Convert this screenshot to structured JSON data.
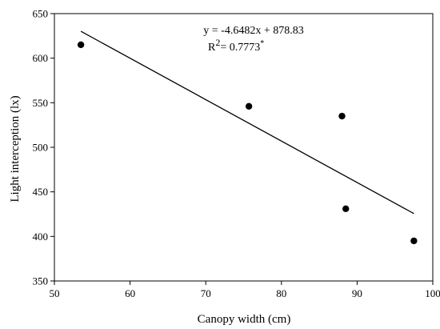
{
  "chart_data": {
    "type": "scatter",
    "xlabel": "Canopy width (cm)",
    "ylabel": "Light interception (lx)",
    "xlim": [
      50,
      100
    ],
    "ylim": [
      350,
      650
    ],
    "x_ticks": [
      50,
      60,
      70,
      80,
      90,
      100
    ],
    "y_ticks": [
      350,
      400,
      450,
      500,
      550,
      600,
      650
    ],
    "grid": false,
    "series": [
      {
        "points": [
          {
            "x": 53.5,
            "y": 615
          },
          {
            "x": 75.7,
            "y": 546
          },
          {
            "x": 88.0,
            "y": 535
          },
          {
            "x": 88.5,
            "y": 431
          },
          {
            "x": 97.5,
            "y": 395
          }
        ]
      }
    ],
    "trendline": {
      "slope": -4.6482,
      "intercept": 878.83,
      "x_range": [
        53.5,
        97.5
      ]
    },
    "annotations": {
      "equation": "y = -4.6482x + 878.83",
      "r2_prefix": "R",
      "r2_exp": "2",
      "r2_value": "= 0.7773",
      "r2_mark": "*"
    }
  }
}
